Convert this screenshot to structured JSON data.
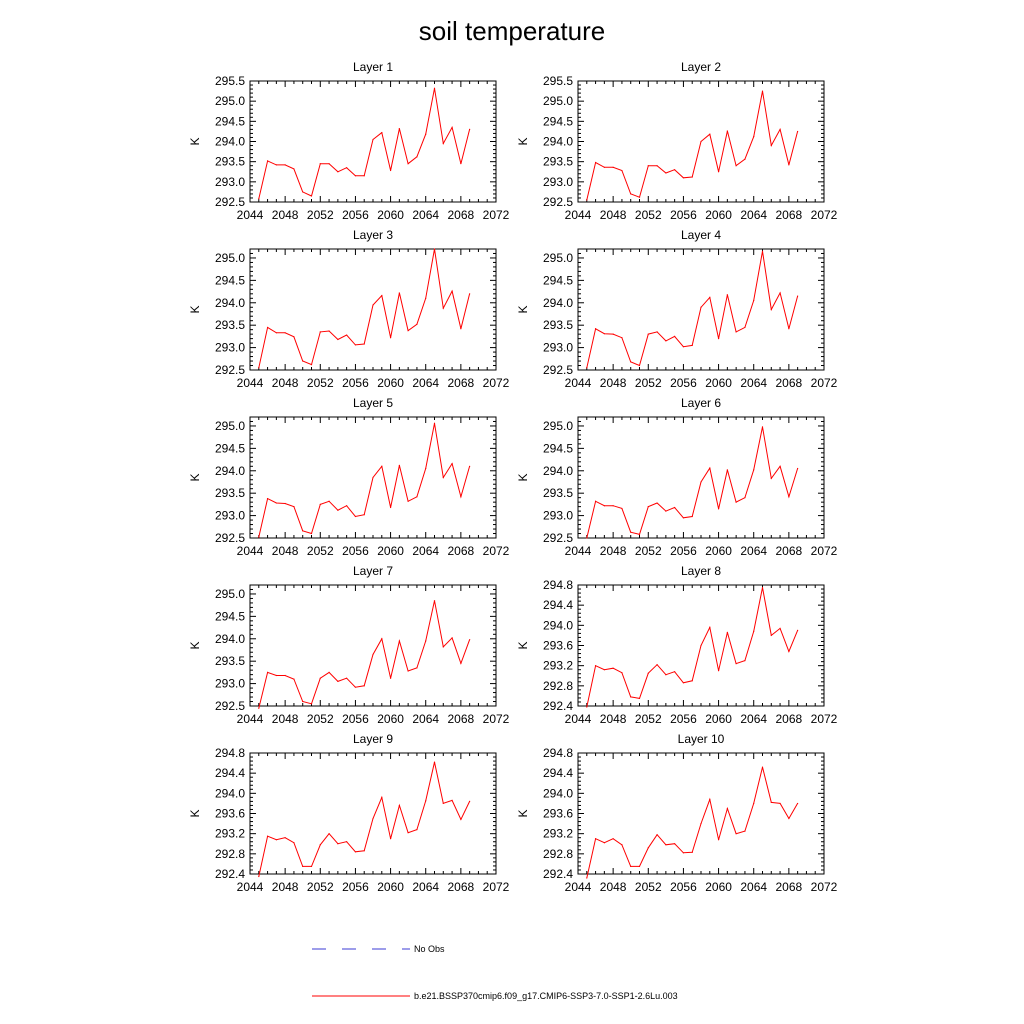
{
  "title": "soil temperature",
  "xlim": [
    2044,
    2072
  ],
  "x_ticks": [
    2044,
    2048,
    2052,
    2056,
    2060,
    2064,
    2068,
    2072
  ],
  "ylabel": "K",
  "line_color": "#ff0000",
  "obs_color": "#3b3bd6",
  "legend": [
    {
      "label": "No Obs",
      "style": "dashed",
      "color": "#3b3bd6"
    },
    {
      "label": "b.e21.BSSP370cmip6.f09_g17.CMIP6-SSP3-7.0-SSP1-2.6Lu.003",
      "style": "solid",
      "color": "#ff0000"
    }
  ],
  "chart_data": [
    {
      "type": "line",
      "title": "Layer 1",
      "ylabel": "K",
      "ylim": [
        292.5,
        295.5
      ],
      "yticks": [
        "292.5",
        "293.0",
        "293.5",
        "294.0",
        "294.5",
        "295.0",
        "295.5"
      ],
      "x": [
        2045,
        2046,
        2047,
        2048,
        2049,
        2050,
        2051,
        2052,
        2053,
        2054,
        2055,
        2056,
        2057,
        2058,
        2059,
        2060,
        2061,
        2062,
        2063,
        2064,
        2065,
        2066,
        2067,
        2068,
        2069
      ],
      "series": [
        {
          "values": [
            292.58,
            293.52,
            293.42,
            293.42,
            293.32,
            292.75,
            292.65,
            293.45,
            293.45,
            293.25,
            293.35,
            293.15,
            293.15,
            294.05,
            294.22,
            293.28,
            294.32,
            293.45,
            293.62,
            294.18,
            295.32,
            293.95,
            294.35,
            293.45,
            294.3
          ]
        }
      ]
    },
    {
      "type": "line",
      "title": "Layer 2",
      "ylabel": "K",
      "ylim": [
        292.5,
        295.5
      ],
      "yticks": [
        "292.5",
        "293.0",
        "293.5",
        "294.0",
        "294.5",
        "295.0",
        "295.5"
      ],
      "x": [
        2045,
        2046,
        2047,
        2048,
        2049,
        2050,
        2051,
        2052,
        2053,
        2054,
        2055,
        2056,
        2057,
        2058,
        2059,
        2060,
        2061,
        2062,
        2063,
        2064,
        2065,
        2066,
        2067,
        2068,
        2069
      ],
      "series": [
        {
          "values": [
            292.55,
            293.48,
            293.36,
            293.36,
            293.28,
            292.7,
            292.62,
            293.4,
            293.4,
            293.22,
            293.3,
            293.1,
            293.12,
            294.0,
            294.18,
            293.25,
            294.26,
            293.4,
            293.56,
            294.12,
            295.25,
            293.9,
            294.3,
            293.42,
            294.25
          ]
        }
      ]
    },
    {
      "type": "line",
      "title": "Layer 3",
      "ylabel": "K",
      "ylim": [
        292.5,
        295.2
      ],
      "yticks": [
        "292.5",
        "293.0",
        "293.5",
        "294.0",
        "294.5",
        "295.0"
      ],
      "x": [
        2045,
        2046,
        2047,
        2048,
        2049,
        2050,
        2051,
        2052,
        2053,
        2054,
        2055,
        2056,
        2057,
        2058,
        2059,
        2060,
        2061,
        2062,
        2063,
        2064,
        2065,
        2066,
        2067,
        2068,
        2069
      ],
      "series": [
        {
          "values": [
            292.55,
            293.45,
            293.33,
            293.33,
            293.24,
            292.7,
            292.62,
            293.35,
            293.37,
            293.18,
            293.28,
            293.06,
            293.08,
            293.95,
            294.16,
            293.22,
            294.22,
            293.38,
            293.52,
            294.1,
            295.2,
            293.88,
            294.26,
            293.42,
            294.2
          ]
        }
      ]
    },
    {
      "type": "line",
      "title": "Layer 4",
      "ylabel": "K",
      "ylim": [
        292.5,
        295.2
      ],
      "yticks": [
        "292.5",
        "293.0",
        "293.5",
        "294.0",
        "294.5",
        "295.0"
      ],
      "x": [
        2045,
        2046,
        2047,
        2048,
        2049,
        2050,
        2051,
        2052,
        2053,
        2054,
        2055,
        2056,
        2057,
        2058,
        2059,
        2060,
        2061,
        2062,
        2063,
        2064,
        2065,
        2066,
        2067,
        2068,
        2069
      ],
      "series": [
        {
          "values": [
            292.55,
            293.42,
            293.31,
            293.3,
            293.22,
            292.68,
            292.6,
            293.3,
            293.35,
            293.15,
            293.25,
            293.02,
            293.05,
            293.9,
            294.12,
            293.2,
            294.18,
            293.35,
            293.45,
            294.05,
            295.15,
            293.85,
            294.22,
            293.42,
            294.15
          ]
        }
      ]
    },
    {
      "type": "line",
      "title": "Layer 5",
      "ylabel": "K",
      "ylim": [
        292.5,
        295.2
      ],
      "yticks": [
        "292.5",
        "293.0",
        "293.5",
        "294.0",
        "294.5",
        "295.0"
      ],
      "x": [
        2045,
        2046,
        2047,
        2048,
        2049,
        2050,
        2051,
        2052,
        2053,
        2054,
        2055,
        2056,
        2057,
        2058,
        2059,
        2060,
        2061,
        2062,
        2063,
        2064,
        2065,
        2066,
        2067,
        2068,
        2069
      ],
      "series": [
        {
          "values": [
            292.52,
            293.38,
            293.28,
            293.27,
            293.2,
            292.66,
            292.6,
            293.25,
            293.32,
            293.12,
            293.22,
            292.98,
            293.02,
            293.85,
            294.1,
            293.18,
            294.12,
            293.32,
            293.42,
            294.05,
            295.06,
            293.85,
            294.16,
            293.42,
            294.1
          ]
        }
      ]
    },
    {
      "type": "line",
      "title": "Layer 6",
      "ylabel": "K",
      "ylim": [
        292.5,
        295.2
      ],
      "yticks": [
        "292.5",
        "293.0",
        "293.5",
        "294.0",
        "294.5",
        "295.0"
      ],
      "x": [
        2045,
        2046,
        2047,
        2048,
        2049,
        2050,
        2051,
        2052,
        2053,
        2054,
        2055,
        2056,
        2057,
        2058,
        2059,
        2060,
        2061,
        2062,
        2063,
        2064,
        2065,
        2066,
        2067,
        2068,
        2069
      ],
      "series": [
        {
          "values": [
            292.5,
            293.32,
            293.22,
            293.22,
            293.16,
            292.63,
            292.58,
            293.2,
            293.28,
            293.1,
            293.18,
            292.95,
            292.98,
            293.75,
            294.06,
            293.15,
            294.02,
            293.3,
            293.4,
            294.02,
            294.98,
            293.83,
            294.1,
            293.42,
            294.05
          ]
        }
      ]
    },
    {
      "type": "line",
      "title": "Layer 7",
      "ylabel": "K",
      "ylim": [
        292.5,
        295.2
      ],
      "yticks": [
        "292.5",
        "293.0",
        "293.5",
        "294.0",
        "294.5",
        "295.0"
      ],
      "x": [
        2045,
        2046,
        2047,
        2048,
        2049,
        2050,
        2051,
        2052,
        2053,
        2054,
        2055,
        2056,
        2057,
        2058,
        2059,
        2060,
        2061,
        2062,
        2063,
        2064,
        2065,
        2066,
        2067,
        2068,
        2069
      ],
      "series": [
        {
          "values": [
            292.45,
            293.25,
            293.18,
            293.18,
            293.1,
            292.6,
            292.55,
            293.12,
            293.25,
            293.05,
            293.12,
            292.92,
            292.95,
            293.65,
            294.0,
            293.12,
            293.95,
            293.28,
            293.35,
            293.95,
            294.85,
            293.82,
            294.02,
            293.45,
            293.98
          ]
        }
      ]
    },
    {
      "type": "line",
      "title": "Layer 8",
      "ylabel": "K",
      "ylim": [
        292.4,
        294.8
      ],
      "yticks": [
        "292.4",
        "292.8",
        "293.2",
        "293.6",
        "294.0",
        "294.4",
        "294.8"
      ],
      "x": [
        2045,
        2046,
        2047,
        2048,
        2049,
        2050,
        2051,
        2052,
        2053,
        2054,
        2055,
        2056,
        2057,
        2058,
        2059,
        2060,
        2061,
        2062,
        2063,
        2064,
        2065,
        2066,
        2067,
        2068,
        2069
      ],
      "series": [
        {
          "values": [
            292.38,
            293.2,
            293.12,
            293.15,
            293.06,
            292.58,
            292.55,
            293.05,
            293.22,
            293.02,
            293.08,
            292.86,
            292.9,
            293.6,
            293.96,
            293.1,
            293.86,
            293.24,
            293.3,
            293.88,
            294.75,
            293.8,
            293.94,
            293.48,
            293.9
          ]
        }
      ]
    },
    {
      "type": "line",
      "title": "Layer 9",
      "ylabel": "K",
      "ylim": [
        292.4,
        294.8
      ],
      "yticks": [
        "292.4",
        "292.8",
        "293.2",
        "293.6",
        "294.0",
        "294.4",
        "294.8"
      ],
      "x": [
        2045,
        2046,
        2047,
        2048,
        2049,
        2050,
        2051,
        2052,
        2053,
        2054,
        2055,
        2056,
        2057,
        2058,
        2059,
        2060,
        2061,
        2062,
        2063,
        2064,
        2065,
        2066,
        2067,
        2068,
        2069
      ],
      "series": [
        {
          "values": [
            292.35,
            293.15,
            293.08,
            293.12,
            293.02,
            292.55,
            292.55,
            292.98,
            293.2,
            293.0,
            293.04,
            292.84,
            292.86,
            293.5,
            293.92,
            293.1,
            293.76,
            293.22,
            293.28,
            293.85,
            294.62,
            293.8,
            293.86,
            293.48,
            293.84
          ]
        }
      ]
    },
    {
      "type": "line",
      "title": "Layer 10",
      "ylabel": "K",
      "ylim": [
        292.4,
        294.8
      ],
      "yticks": [
        "292.4",
        "292.8",
        "293.2",
        "293.6",
        "294.0",
        "294.4",
        "294.8"
      ],
      "x": [
        2045,
        2046,
        2047,
        2048,
        2049,
        2050,
        2051,
        2052,
        2053,
        2054,
        2055,
        2056,
        2057,
        2058,
        2059,
        2060,
        2061,
        2062,
        2063,
        2064,
        2065,
        2066,
        2067,
        2068,
        2069
      ],
      "series": [
        {
          "values": [
            292.32,
            293.1,
            293.02,
            293.1,
            292.98,
            292.55,
            292.55,
            292.92,
            293.18,
            292.98,
            293.0,
            292.82,
            292.83,
            293.4,
            293.88,
            293.08,
            293.7,
            293.2,
            293.25,
            293.8,
            294.52,
            293.82,
            293.8,
            293.5,
            293.8
          ]
        }
      ]
    }
  ]
}
